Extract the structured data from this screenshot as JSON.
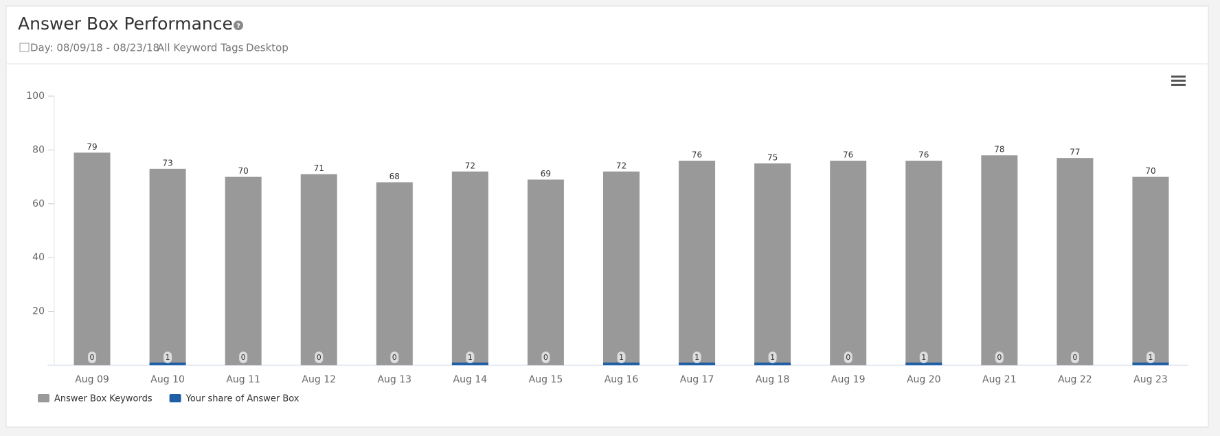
{
  "header": {
    "title": "Answer Box Performance",
    "filters": [
      "Day: 08/09/18 - 08/23/18",
      "All Keyword Tags",
      "Desktop"
    ]
  },
  "chart_data": {
    "type": "bar",
    "categories": [
      "Aug 09",
      "Aug 10",
      "Aug 11",
      "Aug 12",
      "Aug 13",
      "Aug 14",
      "Aug 15",
      "Aug 16",
      "Aug 17",
      "Aug 18",
      "Aug 19",
      "Aug 20",
      "Aug 21",
      "Aug 22",
      "Aug 23"
    ],
    "series": [
      {
        "name": "Answer Box Keywords",
        "color": "#999999",
        "values": [
          79,
          73,
          70,
          71,
          68,
          72,
          69,
          72,
          76,
          75,
          76,
          76,
          78,
          77,
          70
        ]
      },
      {
        "name": "Your share of Answer Box",
        "color": "#1f5fa6",
        "values": [
          0,
          1,
          0,
          0,
          0,
          1,
          0,
          1,
          1,
          1,
          0,
          1,
          0,
          0,
          1
        ]
      }
    ],
    "ylim": [
      0,
      100
    ],
    "yticks": [
      20,
      40,
      60,
      80,
      100
    ],
    "grid": false,
    "legend": "bottom-left"
  }
}
